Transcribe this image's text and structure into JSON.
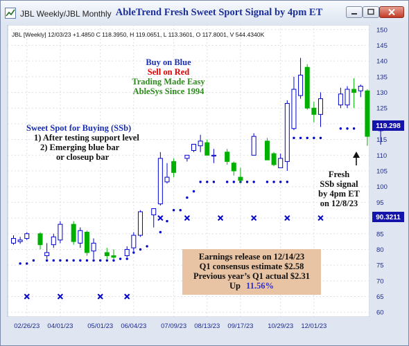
{
  "window": {
    "tab_label": "JBL Weekly/JBL Monthly",
    "icons": [
      "chart-app-icon",
      "minimize-icon",
      "maximize-icon",
      "close-icon"
    ]
  },
  "chart_data": {
    "type": "candlestick",
    "title": "AbleTrend Fresh Sweet Sport Signal by 4pm ET",
    "info_line": "JBL [Weekly] 12/03/23 +1.4850 C 118.3950, H 119.0651, L 113.3601, O 117.8001, V 544.4340K",
    "yaxis": {
      "ticks": [
        60,
        65,
        70,
        75,
        80,
        85,
        90,
        95,
        100,
        105,
        110,
        115,
        120,
        125,
        130,
        135,
        140,
        145,
        150
      ],
      "ylim": [
        58.5,
        151.5
      ],
      "side": "right"
    },
    "xaxis": {
      "labels": [
        "02/26/23",
        "04/01/23",
        "05/01/23",
        "06/04/23",
        "07/09/23",
        "08/13/23",
        "09/17/23",
        "10/29/23",
        "12/01/23"
      ],
      "label_weeks": [
        2,
        7,
        13,
        18,
        24,
        29,
        34,
        40,
        45
      ]
    },
    "grid": true,
    "colors": {
      "up": "#0000cc",
      "down": "#00b000",
      "stop_dots": "#0000cc",
      "x_markers": "#0000cc",
      "price_badge": "#1414aa",
      "stop_badge": "#1414aa",
      "background": "#ffffff"
    },
    "price_badge": "119.298",
    "stop_badge": "90.3211",
    "candles": [
      {
        "o": 82.0,
        "h": 84.5,
        "l": 81.5,
        "c": 83.5
      },
      {
        "o": 82.5,
        "h": 84.0,
        "l": 81.8,
        "c": 83.0
      },
      {
        "o": 83.5,
        "h": 85.5,
        "l": 83.0,
        "c": 85.0
      },
      {
        "o": null,
        "h": null,
        "l": null,
        "c": null
      },
      {
        "o": 85.0,
        "h": 85.5,
        "l": 80.0,
        "c": 81.5
      },
      {
        "o": 78.0,
        "h": 82.0,
        "l": 77.0,
        "c": 79.0
      },
      {
        "o": 81.5,
        "h": 85.0,
        "l": 80.5,
        "c": 84.0
      },
      {
        "o": 83.0,
        "h": 89.0,
        "l": 82.0,
        "c": 88.0
      },
      {
        "o": null,
        "h": null,
        "l": null,
        "c": null
      },
      {
        "o": 88.0,
        "h": 89.0,
        "l": 81.5,
        "c": 82.5
      },
      {
        "o": 82.0,
        "h": 87.0,
        "l": 80.5,
        "c": 86.0
      },
      {
        "o": 85.5,
        "h": 86.0,
        "l": 78.0,
        "c": 79.0
      },
      {
        "o": 79.5,
        "h": 83.5,
        "l": 77.0,
        "c": 82.0
      },
      {
        "o": null,
        "h": null,
        "l": null,
        "c": null
      },
      {
        "o": 79.0,
        "h": 80.5,
        "l": 77.0,
        "c": 78.0
      },
      {
        "o": 78.0,
        "h": 80.0,
        "l": 77.0,
        "c": 77.5
      },
      {
        "o": null,
        "h": null,
        "l": null,
        "c": null
      },
      {
        "o": 78.0,
        "h": 81.0,
        "l": 77.5,
        "c": 80.0
      },
      {
        "o": 80.5,
        "h": 85.5,
        "l": 79.5,
        "c": 84.5
      },
      {
        "o": 84.5,
        "h": 92.5,
        "l": 84.0,
        "c": 92.0
      },
      {
        "o": null,
        "h": null,
        "l": null,
        "c": null
      },
      {
        "o": 91.0,
        "h": 92.5,
        "l": 87.0,
        "c": 93.0
      },
      {
        "o": 94.5,
        "h": 111.0,
        "l": 94.0,
        "c": 109.0
      },
      {
        "o": 101.5,
        "h": 107.5,
        "l": 101.0,
        "c": 103.0
      },
      {
        "o": 108.0,
        "h": 109.0,
        "l": 103.0,
        "c": 104.5
      },
      {
        "o": null,
        "h": null,
        "l": null,
        "c": null
      },
      {
        "o": 109.0,
        "h": 110.0,
        "l": 108.0,
        "c": 110.0
      },
      {
        "o": 111.5,
        "h": 113.0,
        "l": 111.0,
        "c": 113.5
      },
      {
        "o": 113.0,
        "h": 116.5,
        "l": 111.0,
        "c": 114.5
      },
      {
        "o": 114.0,
        "h": 115.0,
        "l": 110.0,
        "c": 110.0
      },
      {
        "o": 110.0,
        "h": 112.0,
        "l": 107.5,
        "c": 110.0
      },
      {
        "o": null,
        "h": null,
        "l": null,
        "c": null
      },
      {
        "o": 111.0,
        "h": 112.0,
        "l": 107.0,
        "c": 108.0
      },
      {
        "o": 107.5,
        "h": 108.0,
        "l": 103.5,
        "c": 105.0
      },
      {
        "o": 103.0,
        "h": 106.0,
        "l": 101.0,
        "c": 102.0
      },
      {
        "o": null,
        "h": null,
        "l": null,
        "c": null
      },
      {
        "o": 110.0,
        "h": 117.0,
        "l": 110.0,
        "c": 116.0
      },
      {
        "o": null,
        "h": null,
        "l": null,
        "c": null
      },
      {
        "o": 114.5,
        "h": 115.5,
        "l": 108.5,
        "c": 108.5
      },
      {
        "o": 110.5,
        "h": 111.0,
        "l": 106.5,
        "c": 107.0
      },
      {
        "o": 106.0,
        "h": 110.5,
        "l": 106.0,
        "c": 109.0
      },
      {
        "o": 108.0,
        "h": 127.5,
        "l": 105.0,
        "c": 126.5
      },
      {
        "o": 118.5,
        "h": 135.0,
        "l": 118.0,
        "c": 131.0
      },
      {
        "o": 129.0,
        "h": 141.0,
        "l": 128.0,
        "c": 135.5
      },
      {
        "o": 138.0,
        "h": 139.0,
        "l": 124.5,
        "c": 125.0
      },
      {
        "o": 125.0,
        "h": 127.0,
        "l": 120.5,
        "c": 123.0
      },
      {
        "o": 123.0,
        "h": 130.0,
        "l": 119.0,
        "c": 128.0
      },
      {
        "o": null,
        "h": null,
        "l": null,
        "c": null
      },
      {
        "o": null,
        "h": null,
        "l": null,
        "c": null
      },
      {
        "o": 126.0,
        "h": 131.5,
        "l": 125.0,
        "c": 129.5
      },
      {
        "o": 126.0,
        "h": 132.0,
        "l": 125.0,
        "c": 131.0
      },
      {
        "o": 131.0,
        "h": 134.5,
        "l": 125.0,
        "c": 130.0
      },
      {
        "o": 130.5,
        "h": 132.5,
        "l": 128.5,
        "c": 132.0
      },
      {
        "o": 130.5,
        "h": 131.0,
        "l": 113.0,
        "c": 116.0
      },
      {
        "o": null,
        "h": null,
        "l": null,
        "c": null
      },
      {
        "o": 117.8,
        "h": 119.07,
        "l": 113.36,
        "c": 118.4
      }
    ],
    "stop_dots": [
      null,
      75.5,
      75.5,
      76.5,
      null,
      76.5,
      76.5,
      76.5,
      76.5,
      76.5,
      76.5,
      76.5,
      76.5,
      76.5,
      76.5,
      76.5,
      77.0,
      77.0,
      79.0,
      80.0,
      81.0,
      null,
      85.5,
      89.0,
      92.5,
      92.5,
      96.5,
      98.5,
      101.5,
      101.5,
      101.5,
      null,
      101.5,
      101.5,
      101.5,
      101.5,
      101.5,
      null,
      101.5,
      101.5,
      101.5,
      101.5,
      115.5,
      115.5,
      115.5,
      115.5,
      115.5,
      null,
      null,
      118.5,
      118.5,
      118.5,
      null,
      null,
      null,
      null
    ],
    "x_markers": [
      {
        "week": 2,
        "value": 65
      },
      {
        "week": 7,
        "value": 65
      },
      {
        "week": 13,
        "value": 65
      },
      {
        "week": 17,
        "value": 65
      },
      {
        "week": 22,
        "value": 90
      },
      {
        "week": 26,
        "value": 90
      },
      {
        "week": 31,
        "value": 90
      },
      {
        "week": 36,
        "value": 90
      },
      {
        "week": 41,
        "value": 90
      },
      {
        "week": 46,
        "value": 90
      }
    ],
    "annotations": {
      "legend": [
        {
          "text": "Buy on Blue",
          "color": "#1a2fb4"
        },
        {
          "text": "Sell on Red",
          "color": "#e00000"
        },
        {
          "text": "Trading Made Easy",
          "color": "#2e8a1e"
        },
        {
          "text": "AbleSys Since 1994",
          "color": "#2e8a1e"
        }
      ],
      "sweet_spot": {
        "heading": "Sweet Spot for Buying (SSb)",
        "lines": [
          "1) After testing support level",
          "2) Emerging blue bar",
          "or closeup bar"
        ]
      },
      "fresh_signal": [
        "Fresh",
        "SSb signal",
        "by 4pm ET",
        "on 12/8/23"
      ],
      "earnings_box": {
        "lines": [
          "Earnings release on 12/14/23",
          "Q1 consensus estimate $2.58",
          "Previous year’s Q1 actual $2.31"
        ],
        "last_prefix": "Up",
        "last_value": "11.56%",
        "colors": {
          "box": "#e8c4a4",
          "value": "#2f2fc8"
        }
      }
    }
  }
}
